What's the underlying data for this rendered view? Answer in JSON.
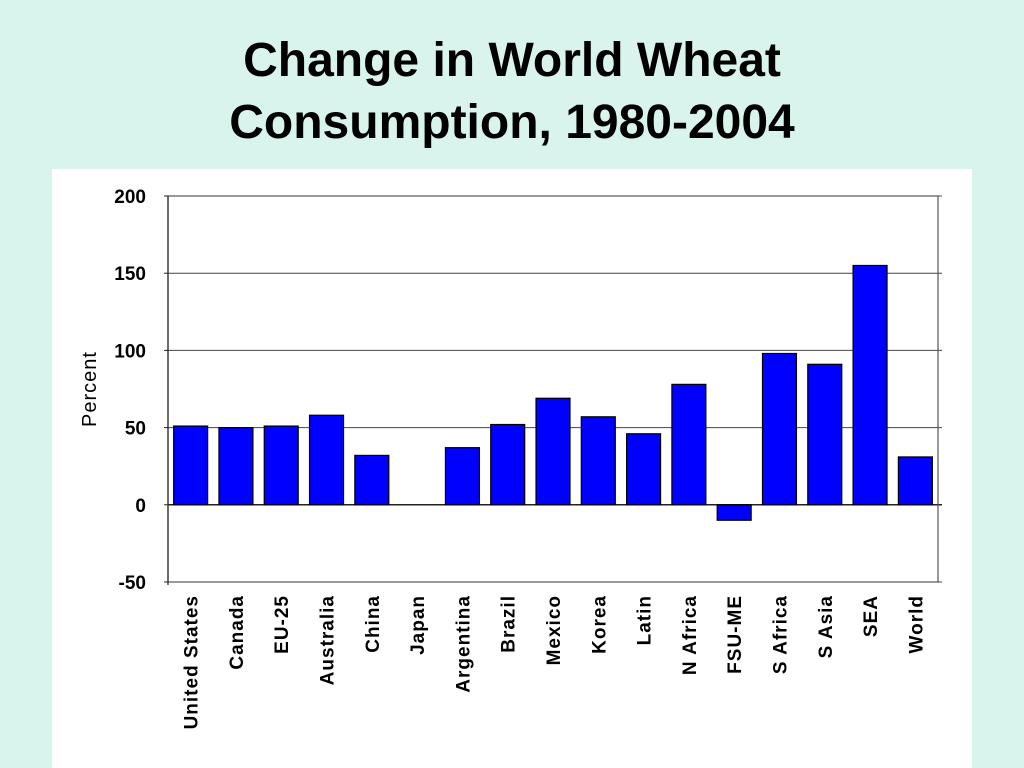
{
  "slide": {
    "title_line1": "Change in World Wheat",
    "title_line2": "Consumption, 1980-2004",
    "background_color": "#d9f4ec"
  },
  "chart_data": {
    "type": "bar",
    "title": "",
    "xlabel": "",
    "ylabel": "Percent",
    "ylim": [
      -50,
      200
    ],
    "yticks": [
      "200",
      "150",
      "100",
      "50",
      "0",
      "-50"
    ],
    "ytick_values": [
      200,
      150,
      100,
      50,
      0,
      -50
    ],
    "grid": true,
    "legend": "none",
    "bar_color": "#0000ff",
    "categories": [
      "United States",
      "Canada",
      "EU-25",
      "Australia",
      "China",
      "Japan",
      "Argentina",
      "Brazil",
      "Mexico",
      "Korea",
      "Latin",
      "N Africa",
      "FSU-ME",
      "S Africa",
      "S Asia",
      "SEA",
      "World"
    ],
    "values": [
      51,
      50,
      51,
      58,
      32,
      0,
      37,
      52,
      69,
      57,
      46,
      78,
      -10,
      98,
      91,
      155,
      31
    ]
  }
}
